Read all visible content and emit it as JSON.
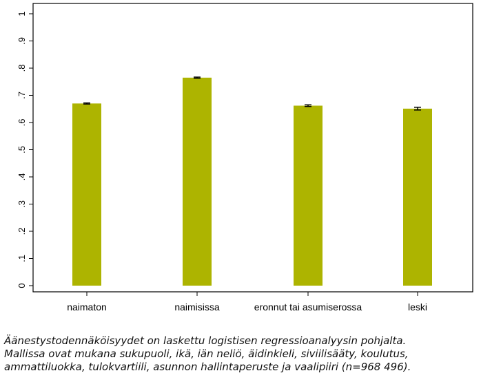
{
  "chart_data": {
    "type": "bar",
    "categories": [
      "naimaton",
      "naimisissa",
      "eronnut tai asumiserossa",
      "leski"
    ],
    "values": [
      0.67,
      0.765,
      0.662,
      0.651
    ],
    "error_low": [
      0.668,
      0.763,
      0.659,
      0.646
    ],
    "error_high": [
      0.672,
      0.767,
      0.665,
      0.656
    ],
    "ylim": [
      0,
      1
    ],
    "yticks": [
      0,
      0.1,
      0.2,
      0.3,
      0.4,
      0.5,
      0.6,
      0.7,
      0.8,
      0.9,
      1
    ],
    "ytick_labels": [
      "0",
      ".1",
      ".2",
      ".3",
      ".4",
      ".5",
      ".6",
      ".7",
      ".8",
      ".9",
      "1"
    ],
    "bar_color": "#adb400",
    "grid": false
  },
  "caption": {
    "line1": "Äänestystodennäköisyydet on laskettu logistisen regressioanalyysin pohjalta.",
    "line2": "Mallissa ovat mukana sukupuoli, ikä, iän neliö, äidinkieli, siviilisääty, koulutus,",
    "line3": "ammattiluokka, tulokvartiili, asunnon hallintaperuste ja vaalipiiri (n=968 496)."
  }
}
